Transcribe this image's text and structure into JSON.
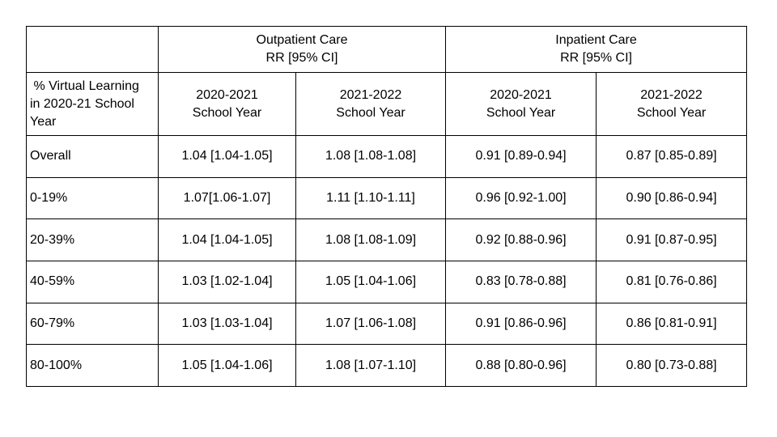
{
  "table": {
    "group_headers": [
      {
        "line1": "Outpatient Care",
        "line2": "RR [95% CI]"
      },
      {
        "line1": "Inpatient Care",
        "line2": "RR [95% CI]"
      }
    ],
    "stub_header": {
      "line1": " % Virtual Learning",
      "line2": "in 2020-21 School",
      "line3": "Year"
    },
    "sub_headers": [
      {
        "line1": "2020-2021",
        "line2": "School Year"
      },
      {
        "line1": "2021-2022",
        "line2": "School Year"
      },
      {
        "line1": "2020-2021",
        "line2": "School Year"
      },
      {
        "line1": "2021-2022",
        "line2": "School Year"
      }
    ],
    "rows": [
      {
        "label": "Overall",
        "cells": [
          "1.04 [1.04-1.05]",
          "1.08 [1.08-1.08]",
          "0.91 [0.89-0.94]",
          "0.87 [0.85-0.89]"
        ]
      },
      {
        "label": "0-19%",
        "cells": [
          "1.07[1.06-1.07]",
          "1.11 [1.10-1.11]",
          "0.96 [0.92-1.00]",
          "0.90 [0.86-0.94]"
        ]
      },
      {
        "label": "20-39%",
        "cells": [
          "1.04 [1.04-1.05]",
          "1.08 [1.08-1.09]",
          "0.92 [0.88-0.96]",
          "0.91 [0.87-0.95]"
        ]
      },
      {
        "label": "40-59%",
        "cells": [
          "1.03 [1.02-1.04]",
          "1.05 [1.04-1.06]",
          "0.83 [0.78-0.88]",
          "0.81 [0.76-0.86]"
        ]
      },
      {
        "label": "60-79%",
        "cells": [
          "1.03 [1.03-1.04]",
          "1.07 [1.06-1.08]",
          "0.91 [0.86-0.96]",
          "0.86 [0.81-0.91]"
        ]
      },
      {
        "label": "80-100%",
        "cells": [
          "1.05 [1.04-1.06]",
          "1.08 [1.07-1.10]",
          "0.88 [0.80-0.96]",
          "0.80 [0.73-0.88]"
        ]
      }
    ]
  }
}
